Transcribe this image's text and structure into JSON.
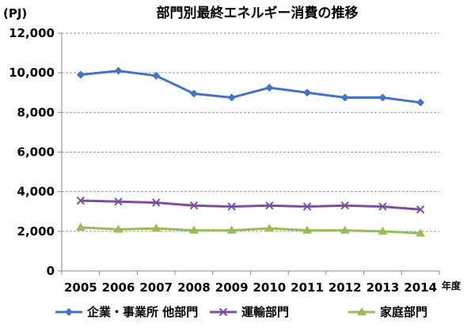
{
  "chart_data": {
    "type": "line",
    "title": "部門別最終エネルギー消費の推移",
    "ylabel": "(PJ)",
    "xlabel": "年度",
    "x": [
      "2005",
      "2006",
      "2007",
      "2008",
      "2009",
      "2010",
      "2011",
      "2012",
      "2013",
      "2014"
    ],
    "ylim": [
      0,
      12000
    ],
    "yticks": [
      "0",
      "2,000",
      "4,000",
      "6,000",
      "8,000",
      "10,000",
      "12,000"
    ],
    "grid": "horizontal-dashed",
    "legend_position": "bottom",
    "series": [
      {
        "name": "企業・事業所 他部門",
        "color": "#4472C4",
        "marker": "diamond",
        "values": [
          9900,
          10100,
          9850,
          8950,
          8750,
          9250,
          9000,
          8750,
          8750,
          8500
        ]
      },
      {
        "name": "運輸部門",
        "color": "#7B4FA0",
        "marker": "x",
        "values": [
          3550,
          3500,
          3450,
          3300,
          3250,
          3300,
          3250,
          3300,
          3250,
          3100
        ]
      },
      {
        "name": "家庭部門",
        "color": "#9BBB59",
        "marker": "triangle",
        "values": [
          2200,
          2100,
          2150,
          2050,
          2050,
          2150,
          2050,
          2050,
          2000,
          1900
        ]
      }
    ]
  }
}
